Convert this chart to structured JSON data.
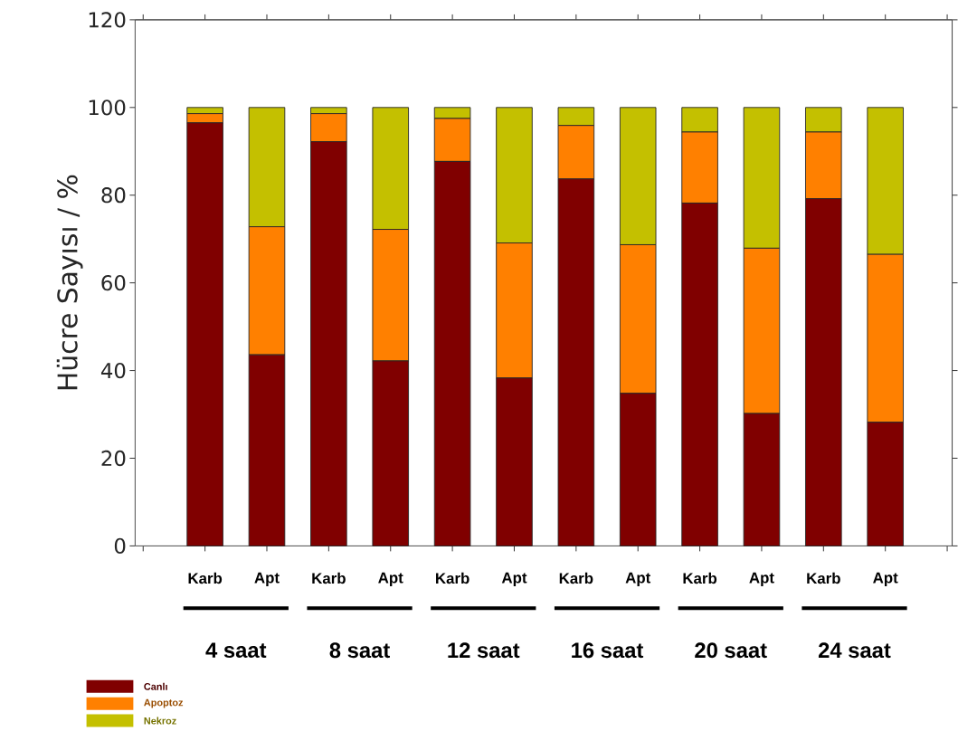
{
  "chart_data": {
    "type": "bar",
    "stacked": true,
    "ylabel": "Hücre Sayısı / %",
    "categories": [
      "Karb",
      "Apt",
      "Karb",
      "Apt",
      "Karb",
      "Apt",
      "Karb",
      "Apt",
      "Karb",
      "Apt",
      "Karb",
      "Apt"
    ],
    "series": [
      {
        "name": "Canlı",
        "color": "#800000",
        "values": [
          96.5,
          43.6,
          92.2,
          42.2,
          87.7,
          38.3,
          83.7,
          34.8,
          78.2,
          30.2,
          79.2,
          28.2
        ]
      },
      {
        "name": "Apoptoz",
        "color": "#ff8000",
        "values": [
          2.1,
          29.2,
          6.4,
          30,
          9.8,
          30.8,
          12.2,
          33.9,
          16.2,
          37.7,
          15.2,
          38.3
        ]
      },
      {
        "name": "Nekroz",
        "color": "#c4c000",
        "values": [
          1.4,
          27.2,
          1.4,
          27.8,
          2.5,
          30.9,
          4.1,
          31.3,
          5.6,
          32.1,
          5.6,
          33.5
        ]
      }
    ],
    "ylim": [
      0,
      120
    ],
    "yticks": [
      0,
      20,
      40,
      60,
      80,
      100,
      120
    ],
    "legend": "bottom left",
    "annotations": [
      "4 saat",
      "8 saat",
      "12 saat",
      "16 saat",
      "20 saat",
      "24 saat"
    ]
  }
}
